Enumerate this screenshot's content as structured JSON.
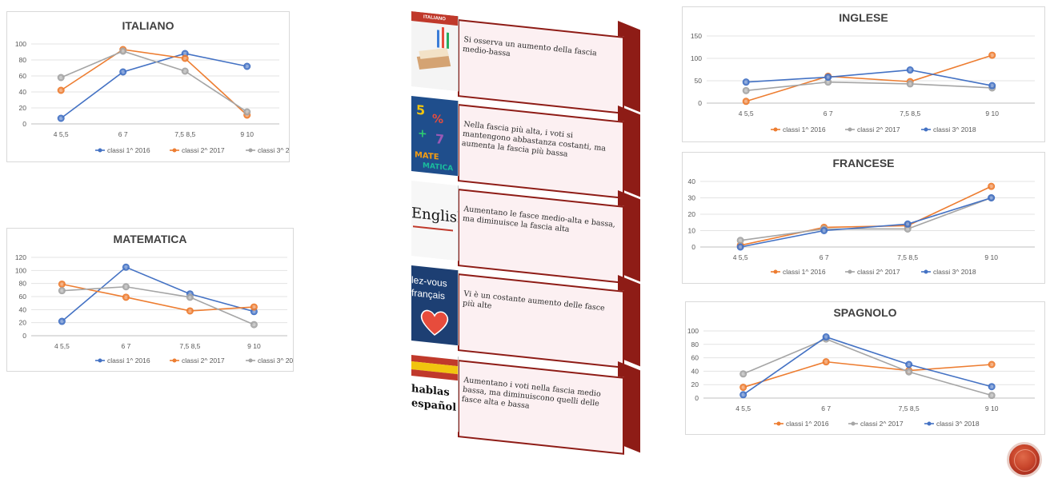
{
  "chart_data": [
    {
      "id": "italiano",
      "type": "line",
      "title": "ITALIANO",
      "categories": [
        "4    5,5",
        "6    7",
        "7,5   8,5",
        "9    10"
      ],
      "ylim": [
        0,
        100
      ],
      "yticks": [
        0,
        20,
        40,
        60,
        80,
        100
      ],
      "grid": true,
      "legend_position": "bottom",
      "series": [
        {
          "name": "classi 1^ 2016",
          "color": "#4472c4",
          "values": [
            7,
            65,
            88,
            72
          ]
        },
        {
          "name": "classi 2^ 2017",
          "color": "#ed7d31",
          "values": [
            42,
            93,
            82,
            11
          ]
        },
        {
          "name": "classi 3^ 2018",
          "color": "#a5a5a5",
          "values": [
            58,
            91,
            66,
            15
          ]
        }
      ]
    },
    {
      "id": "matematica",
      "type": "line",
      "title": "MATEMATICA",
      "categories": [
        "4    5,5",
        "6    7",
        "7,5   8,5",
        "9    10"
      ],
      "ylim": [
        0,
        120
      ],
      "yticks": [
        0,
        20,
        40,
        60,
        80,
        100,
        120
      ],
      "grid": true,
      "legend_position": "bottom",
      "series": [
        {
          "name": "classi 1^ 2016",
          "color": "#4472c4",
          "values": [
            22,
            105,
            64,
            37
          ]
        },
        {
          "name": "classi 2^ 2017",
          "color": "#ed7d31",
          "values": [
            79,
            59,
            38,
            44
          ]
        },
        {
          "name": "classi 3^ 2018",
          "color": "#a5a5a5",
          "values": [
            69,
            75,
            59,
            17
          ]
        }
      ]
    },
    {
      "id": "inglese",
      "type": "line",
      "title": "INGLESE",
      "categories": [
        "4    5,5",
        "6    7",
        "7,5   8,5",
        "9    10"
      ],
      "ylim": [
        0,
        150
      ],
      "yticks": [
        0,
        50,
        100,
        150
      ],
      "grid": true,
      "legend_position": "bottom",
      "series": [
        {
          "name": "classi 1^ 2016",
          "color": "#ed7d31",
          "values": [
            4,
            60,
            48,
            107
          ]
        },
        {
          "name": "classi 2^ 2017",
          "color": "#a5a5a5",
          "values": [
            28,
            47,
            43,
            34
          ]
        },
        {
          "name": "classi 3^ 2018",
          "color": "#4472c4",
          "values": [
            47,
            58,
            74,
            39
          ]
        }
      ]
    },
    {
      "id": "francese",
      "type": "line",
      "title": "FRANCESE",
      "categories": [
        "4    5,5",
        "6    7",
        "7,5   8,5",
        "9    10"
      ],
      "ylim": [
        0,
        40
      ],
      "yticks": [
        0,
        10,
        20,
        30,
        40
      ],
      "grid": true,
      "legend_position": "bottom",
      "series": [
        {
          "name": "classi 1^ 2016",
          "color": "#ed7d31",
          "values": [
            1,
            12,
            13,
            37
          ]
        },
        {
          "name": "classi 2^ 2017",
          "color": "#a5a5a5",
          "values": [
            4,
            11,
            11,
            30
          ]
        },
        {
          "name": "classi 3^ 2018",
          "color": "#4472c4",
          "values": [
            0,
            10,
            14,
            30
          ]
        }
      ]
    },
    {
      "id": "spagnolo",
      "type": "line",
      "title": "SPAGNOLO",
      "categories": [
        "4    5,5",
        "6    7",
        "7,5   8,5",
        "9    10"
      ],
      "ylim": [
        0,
        100
      ],
      "yticks": [
        0,
        20,
        40,
        60,
        80,
        100
      ],
      "grid": true,
      "legend_position": "bottom",
      "series": [
        {
          "name": "classi 1^ 2016",
          "color": "#ed7d31",
          "values": [
            16,
            54,
            41,
            50
          ]
        },
        {
          "name": "classi 2^ 2017",
          "color": "#a5a5a5",
          "values": [
            36,
            88,
            39,
            4
          ]
        },
        {
          "name": "classi 3^ 2018",
          "color": "#4472c4",
          "values": [
            5,
            91,
            50,
            17
          ]
        }
      ]
    }
  ],
  "cards": [
    {
      "thumb_label": "ITALIANO",
      "thumb_icon": "book-icon",
      "text": "Si osserva un aumento della fascia medio-bassa"
    },
    {
      "thumb_label": "",
      "thumb_icon": "math-letters-icon",
      "text": "Nella fascia più alta, i voti si mantengono abbastanza costanti, ma aumenta la fascia più bassa"
    },
    {
      "thumb_label": "English",
      "thumb_icon": "english-word-icon",
      "text": "Aumentano le fasce medio-alta e bassa, ma diminuisce la fascia alta"
    },
    {
      "thumb_label": "lez-vous français",
      "thumb_icon": "french-heart-icon",
      "text": "Vi è un costante aumento delle fasce più alte"
    },
    {
      "thumb_label": "hablas español",
      "thumb_icon": "spanish-flag-icon",
      "text": "Aumentano i voti nella fascia medio bassa, ma diminuiscono quelli delle fasce alta e bassa"
    }
  ],
  "colors": {
    "accent": "#8e1c16",
    "card_bg": "#fcf0f2",
    "blue": "#4472c4",
    "orange": "#ed7d31",
    "gray": "#a5a5a5"
  },
  "logo_icon": "circular-logo-icon"
}
